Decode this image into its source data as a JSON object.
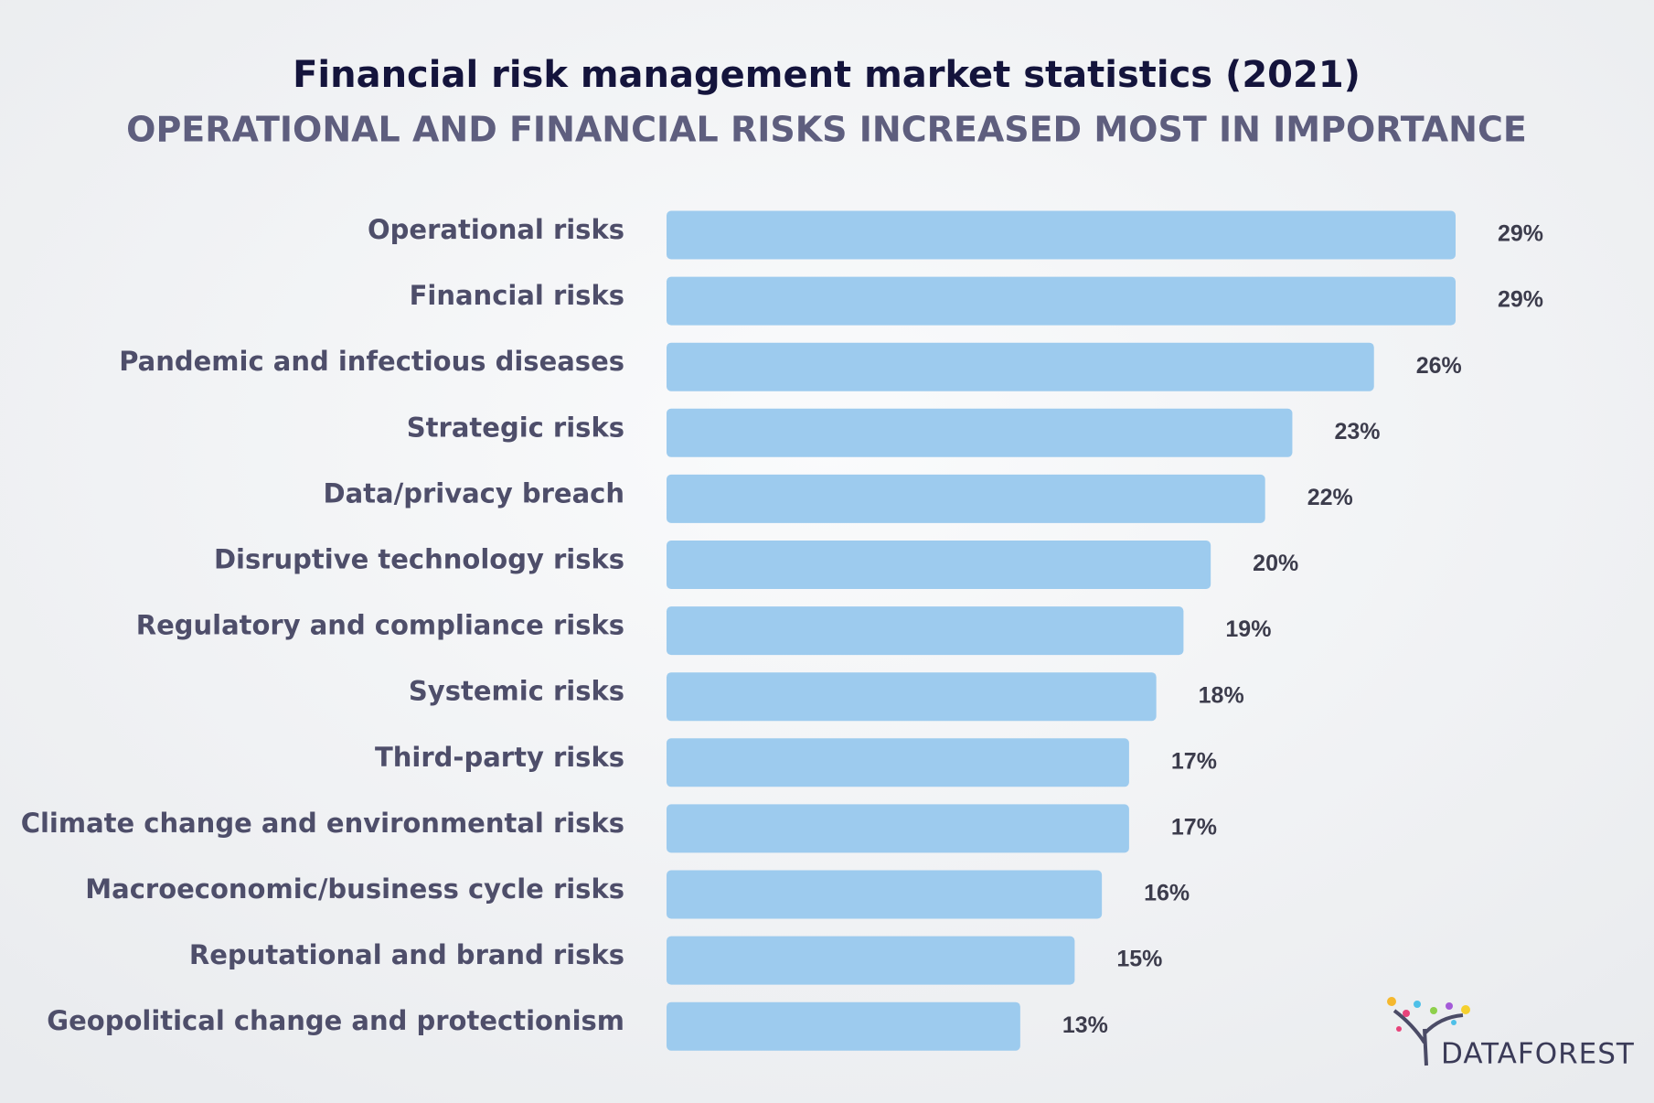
{
  "chart_data": {
    "type": "bar",
    "orientation": "horizontal",
    "title": "Financial risk management market statistics (2021)",
    "subtitle": "OPERATIONAL AND FINANCIAL RISKS INCREASED MOST IN IMPORTANCE",
    "categories": [
      "Operational risks",
      "Financial risks",
      "Pandemic and infectious diseases",
      "Strategic risks",
      "Data/privacy breach",
      "Disruptive technology risks",
      "Regulatory and compliance risks",
      "Systemic risks",
      "Third-party risks",
      "Climate change and environmental risks",
      "Macroeconomic/business cycle risks",
      "Reputational and brand risks",
      "Geopolitical change and protectionism"
    ],
    "values": [
      29,
      29,
      26,
      23,
      22,
      20,
      19,
      18,
      17,
      17,
      16,
      15,
      13
    ],
    "value_labels": [
      "29%",
      "29%",
      "26%",
      "23%",
      "22%",
      "20%",
      "19%",
      "18%",
      "17%",
      "17%",
      "16%",
      "15%",
      "13%"
    ],
    "color": "#9dcbee"
  },
  "brand": "DATAFOREST"
}
